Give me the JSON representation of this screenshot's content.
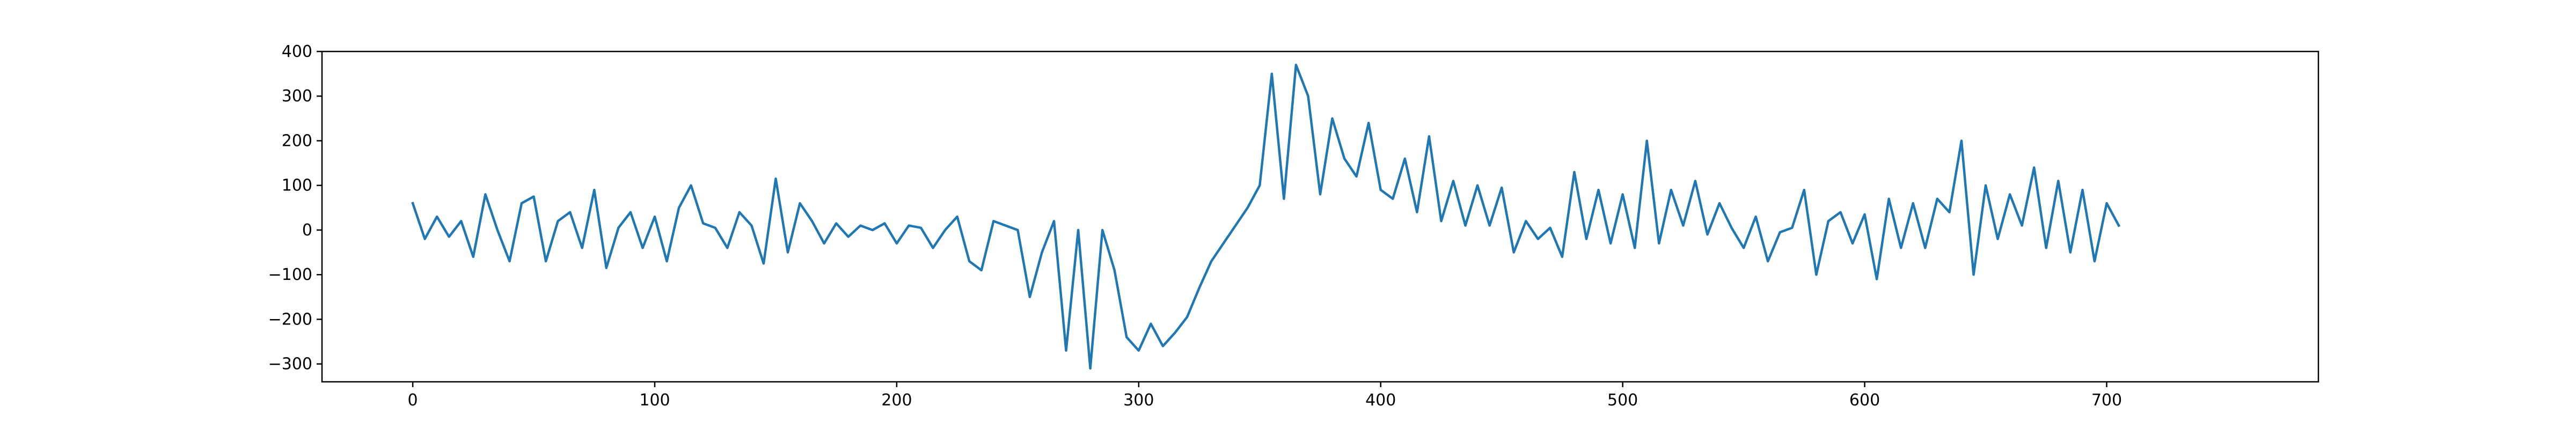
{
  "chart_data": {
    "type": "line",
    "title": "",
    "xlabel": "",
    "ylabel": "",
    "xlim": [
      -37.5,
      787.5
    ],
    "ylim": [
      -340,
      400
    ],
    "x_ticks": [
      0,
      100,
      200,
      300,
      400,
      500,
      600,
      700
    ],
    "y_ticks": [
      -300,
      -200,
      -100,
      0,
      100,
      200,
      300,
      400
    ],
    "x_tick_labels": [
      "0",
      "100",
      "200",
      "300",
      "400",
      "500",
      "600",
      "700"
    ],
    "y_tick_labels": [
      "−300",
      "−200",
      "−100",
      "0",
      "100",
      "200",
      "300",
      "400"
    ],
    "grid": false,
    "legend": "none",
    "colors": {
      "line": "#1f77b4",
      "axes": "#000000",
      "background": "#ffffff"
    },
    "series": [
      {
        "x_start": 0,
        "x_step": 5,
        "values": [
          60,
          -20,
          30,
          -15,
          20,
          -60,
          80,
          0,
          -70,
          60,
          75,
          -70,
          20,
          40,
          -40,
          90,
          -85,
          5,
          40,
          -40,
          30,
          -70,
          50,
          100,
          15,
          5,
          -40,
          40,
          10,
          -75,
          115,
          -50,
          60,
          20,
          -30,
          15,
          -15,
          10,
          0,
          15,
          -30,
          10,
          5,
          -40,
          0,
          30,
          -70,
          -90,
          20,
          10,
          0,
          -150,
          -50,
          20,
          -270,
          0,
          -310,
          0,
          -90,
          -240,
          -270,
          -210,
          -260,
          -230,
          -195,
          -130,
          -70,
          -30,
          10,
          50,
          100,
          350,
          70,
          370,
          300,
          80,
          250,
          160,
          120,
          240,
          90,
          70,
          160,
          40,
          210,
          20,
          110,
          10,
          100,
          10,
          95,
          -50,
          20,
          -20,
          5,
          -60,
          130,
          -20,
          90,
          -30,
          80,
          -40,
          200,
          -30,
          90,
          10,
          110,
          -10,
          60,
          5,
          -40,
          30,
          -70,
          -5,
          5,
          90,
          -100,
          20,
          40,
          -30,
          35,
          -110,
          70,
          -40,
          60,
          -40,
          70,
          40,
          200,
          -100,
          100,
          -20,
          80,
          10,
          140,
          -40,
          110,
          -50,
          90,
          -70,
          60,
          10
        ]
      }
    ]
  }
}
